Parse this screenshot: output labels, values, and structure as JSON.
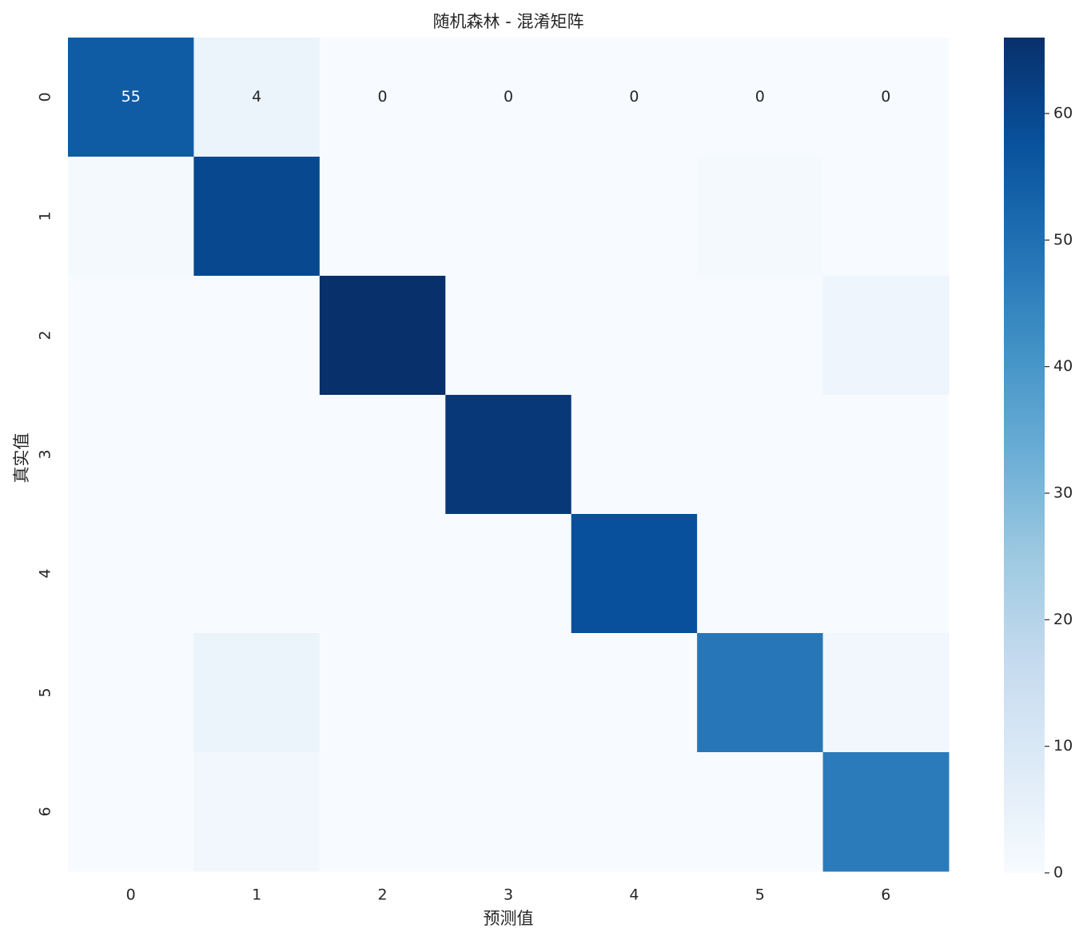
{
  "chart_data": {
    "type": "heatmap",
    "title": "随机森林 - 混淆矩阵",
    "x_label": "预测值",
    "y_label": "真实值",
    "x_categories": [
      "0",
      "1",
      "2",
      "3",
      "4",
      "5",
      "6"
    ],
    "y_categories": [
      "0",
      "1",
      "2",
      "3",
      "4",
      "5",
      "6"
    ],
    "values": [
      [
        55,
        4,
        0,
        0,
        0,
        0,
        0
      ],
      [
        1,
        60,
        0,
        0,
        0,
        1,
        0
      ],
      [
        0,
        0,
        66,
        0,
        0,
        0,
        3
      ],
      [
        0,
        0,
        0,
        64,
        0,
        0,
        0
      ],
      [
        0,
        0,
        0,
        0,
        58,
        0,
        0
      ],
      [
        0,
        4,
        0,
        0,
        0,
        48,
        2
      ],
      [
        0,
        2,
        0,
        0,
        0,
        0,
        47
      ]
    ],
    "annotated_rows": [
      0
    ],
    "colormap": [
      "#f7fbff",
      "#deebf7",
      "#c6dbef",
      "#9ecae1",
      "#6baed6",
      "#4292c6",
      "#2171b5",
      "#08519c",
      "#08306b"
    ],
    "clim": [
      0,
      66
    ],
    "cticks": [
      0,
      10,
      20,
      30,
      40,
      50,
      60
    ]
  }
}
